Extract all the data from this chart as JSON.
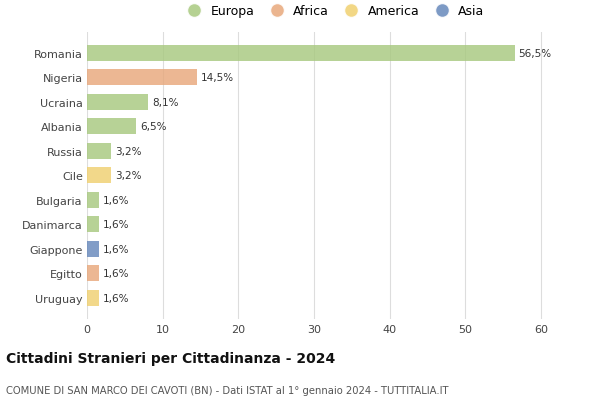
{
  "categories": [
    "Romania",
    "Nigeria",
    "Ucraina",
    "Albania",
    "Russia",
    "Cile",
    "Bulgaria",
    "Danimarca",
    "Giappone",
    "Egitto",
    "Uruguay"
  ],
  "values": [
    56.5,
    14.5,
    8.1,
    6.5,
    3.2,
    3.2,
    1.6,
    1.6,
    1.6,
    1.6,
    1.6
  ],
  "labels": [
    "56,5%",
    "14,5%",
    "8,1%",
    "6,5%",
    "3,2%",
    "3,2%",
    "1,6%",
    "1,6%",
    "1,6%",
    "1,6%",
    "1,6%"
  ],
  "colors": [
    "#a8c97f",
    "#e8a87c",
    "#a8c97f",
    "#a8c97f",
    "#a8c97f",
    "#f0d070",
    "#a8c97f",
    "#a8c97f",
    "#6688bb",
    "#e8a87c",
    "#f0d070"
  ],
  "legend_labels": [
    "Europa",
    "Africa",
    "America",
    "Asia"
  ],
  "legend_colors": [
    "#a8c97f",
    "#e8a87c",
    "#f0d070",
    "#6688bb"
  ],
  "title": "Cittadini Stranieri per Cittadinanza - 2024",
  "subtitle": "COMUNE DI SAN MARCO DEI CAVOTI (BN) - Dati ISTAT al 1° gennaio 2024 - TUTTITALIA.IT",
  "xlim": [
    0,
    65
  ],
  "xticks": [
    0,
    10,
    20,
    30,
    40,
    50,
    60
  ],
  "bg_color": "#ffffff",
  "grid_color": "#dddddd",
  "bar_height": 0.65
}
